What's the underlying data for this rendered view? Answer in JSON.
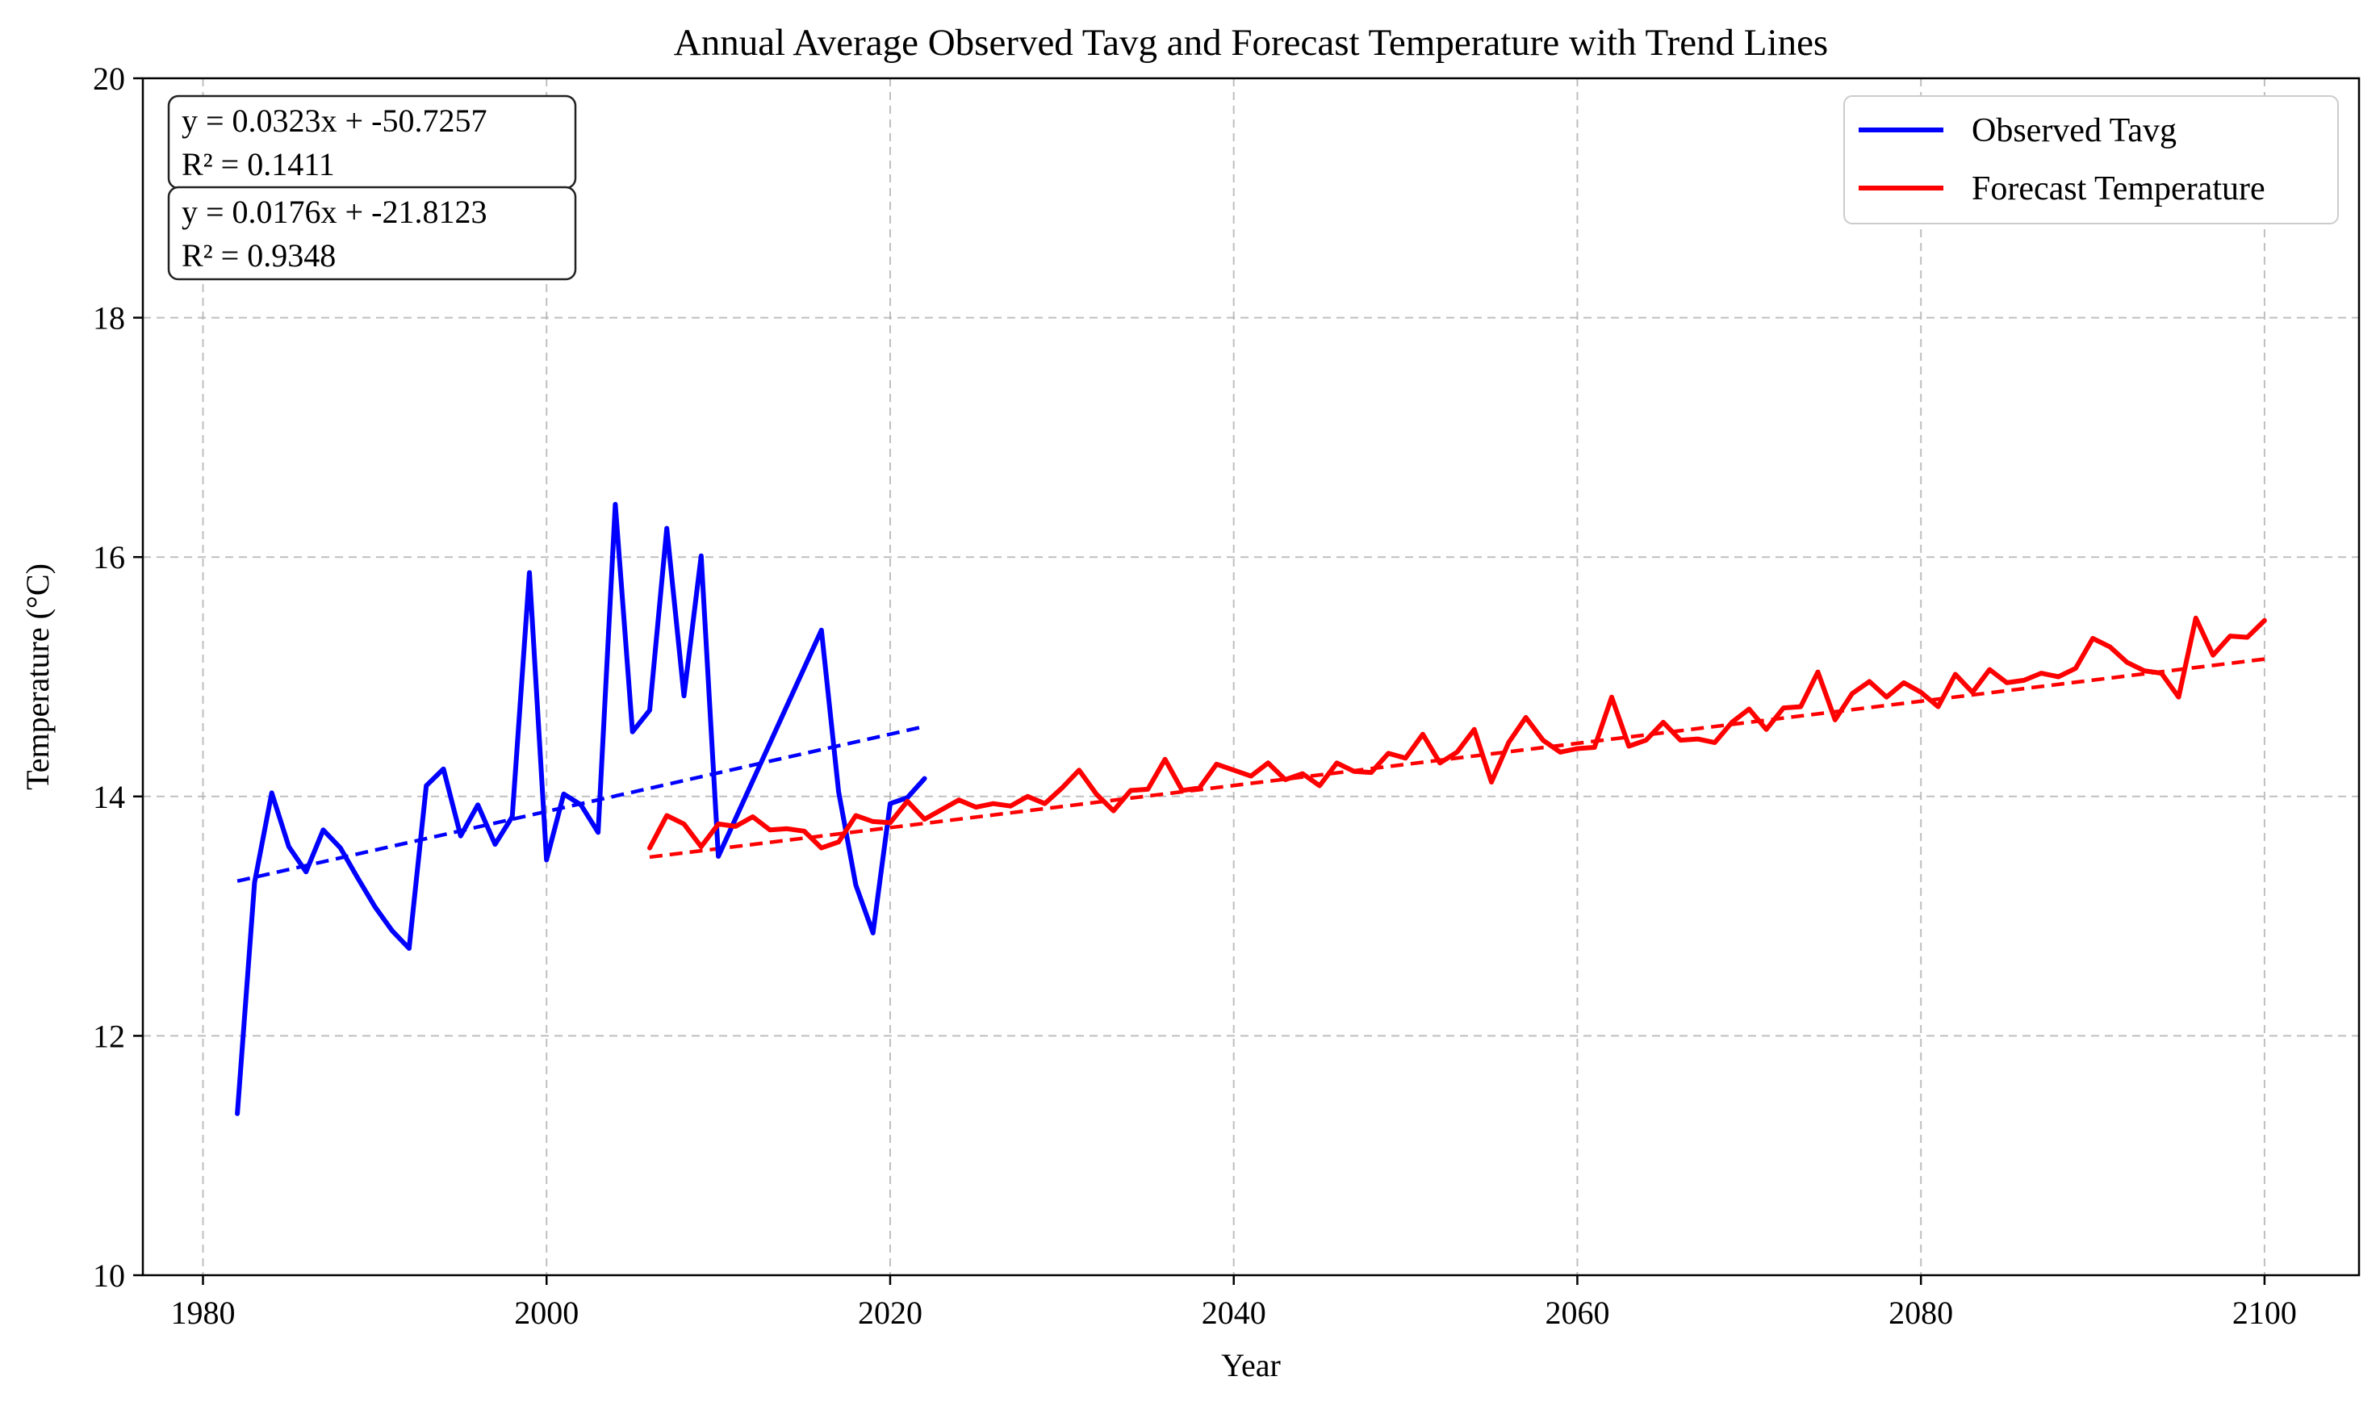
{
  "chart_data": {
    "type": "line",
    "title": "Annual Average Observed Tavg and Forecast Temperature with Trend Lines",
    "xlabel": "Year",
    "ylabel": "Temperature (°C)",
    "xlim": [
      1976.5,
      2105.5
    ],
    "ylim": [
      10,
      20
    ],
    "xticks": [
      1980,
      2000,
      2020,
      2040,
      2060,
      2080,
      2100
    ],
    "yticks": [
      10,
      12,
      14,
      16,
      18,
      20
    ],
    "grid": true,
    "legend_position": "top-right",
    "series": [
      {
        "name": "Observed Tavg",
        "color": "#0000ff",
        "x": [
          1982,
          1983,
          1984,
          1985,
          1986,
          1987,
          1988,
          1989,
          1990,
          1991,
          1992,
          1993,
          1994,
          1995,
          1996,
          1997,
          1998,
          1999,
          2000,
          2001,
          2002,
          2003,
          2004,
          2005,
          2006,
          2007,
          2008,
          2009,
          2010,
          2016,
          2017,
          2018,
          2019,
          2020,
          2021,
          2022
        ],
        "y": [
          11.35,
          13.28,
          14.03,
          13.58,
          13.37,
          13.72,
          13.57,
          13.32,
          13.08,
          12.88,
          12.73,
          14.09,
          14.23,
          13.67,
          13.93,
          13.6,
          13.83,
          15.87,
          13.47,
          14.02,
          13.93,
          13.7,
          16.44,
          14.54,
          14.72,
          16.24,
          14.84,
          16.01,
          13.5,
          15.39,
          14.04,
          13.26,
          12.86,
          13.94,
          13.99,
          14.15
        ]
      },
      {
        "name": "Forecast Temperature",
        "color": "#ff0000",
        "x": [
          2006,
          2007,
          2008,
          2009,
          2010,
          2011,
          2012,
          2013,
          2014,
          2015,
          2016,
          2017,
          2018,
          2019,
          2020,
          2021,
          2022,
          2023,
          2024,
          2025,
          2026,
          2027,
          2028,
          2029,
          2030,
          2031,
          2032,
          2033,
          2034,
          2035,
          2036,
          2037,
          2038,
          2039,
          2040,
          2041,
          2042,
          2043,
          2044,
          2045,
          2046,
          2047,
          2048,
          2049,
          2050,
          2051,
          2052,
          2053,
          2054,
          2055,
          2056,
          2057,
          2058,
          2059,
          2060,
          2061,
          2062,
          2063,
          2064,
          2065,
          2066,
          2067,
          2068,
          2069,
          2070,
          2071,
          2072,
          2073,
          2074,
          2075,
          2076,
          2077,
          2078,
          2079,
          2080,
          2081,
          2082,
          2083,
          2084,
          2085,
          2086,
          2087,
          2088,
          2089,
          2090,
          2091,
          2092,
          2093,
          2094,
          2095,
          2096,
          2097,
          2098,
          2099,
          2100
        ],
        "y": [
          13.57,
          13.84,
          13.77,
          13.58,
          13.77,
          13.75,
          13.83,
          13.72,
          13.73,
          13.71,
          13.57,
          13.62,
          13.84,
          13.79,
          13.78,
          13.96,
          13.81,
          13.89,
          13.97,
          13.91,
          13.94,
          13.92,
          14.0,
          13.94,
          14.07,
          14.22,
          14.02,
          13.88,
          14.05,
          14.06,
          14.31,
          14.05,
          14.07,
          14.27,
          14.22,
          14.17,
          14.28,
          14.14,
          14.19,
          14.09,
          14.28,
          14.21,
          14.2,
          14.36,
          14.32,
          14.52,
          14.28,
          14.37,
          14.56,
          14.12,
          14.45,
          14.66,
          14.47,
          14.37,
          14.4,
          14.41,
          14.83,
          14.42,
          14.47,
          14.62,
          14.47,
          14.48,
          14.45,
          14.62,
          14.73,
          14.56,
          14.74,
          14.75,
          15.04,
          14.64,
          14.86,
          14.96,
          14.83,
          14.95,
          14.87,
          14.75,
          15.02,
          14.87,
          15.06,
          14.95,
          14.97,
          15.03,
          15.0,
          15.07,
          15.32,
          15.25,
          15.12,
          15.05,
          15.03,
          14.83,
          15.49,
          15.18,
          15.34,
          15.33,
          15.47
        ]
      }
    ],
    "trend_lines": [
      {
        "series": "Observed Tavg",
        "color": "#0000ff",
        "slope": 0.0323,
        "intercept": -50.7257,
        "x_range": [
          1982,
          2022
        ]
      },
      {
        "series": "Forecast Temperature",
        "color": "#ff0000",
        "slope": 0.0176,
        "intercept": -21.8123,
        "x_range": [
          2006,
          2100
        ]
      }
    ],
    "annotations": [
      {
        "line1": "y = 0.0323x + -50.7257",
        "line2": "R² = 0.1411"
      },
      {
        "line1": "y = 0.0176x + -21.8123",
        "line2": "R² = 0.9348"
      }
    ]
  }
}
